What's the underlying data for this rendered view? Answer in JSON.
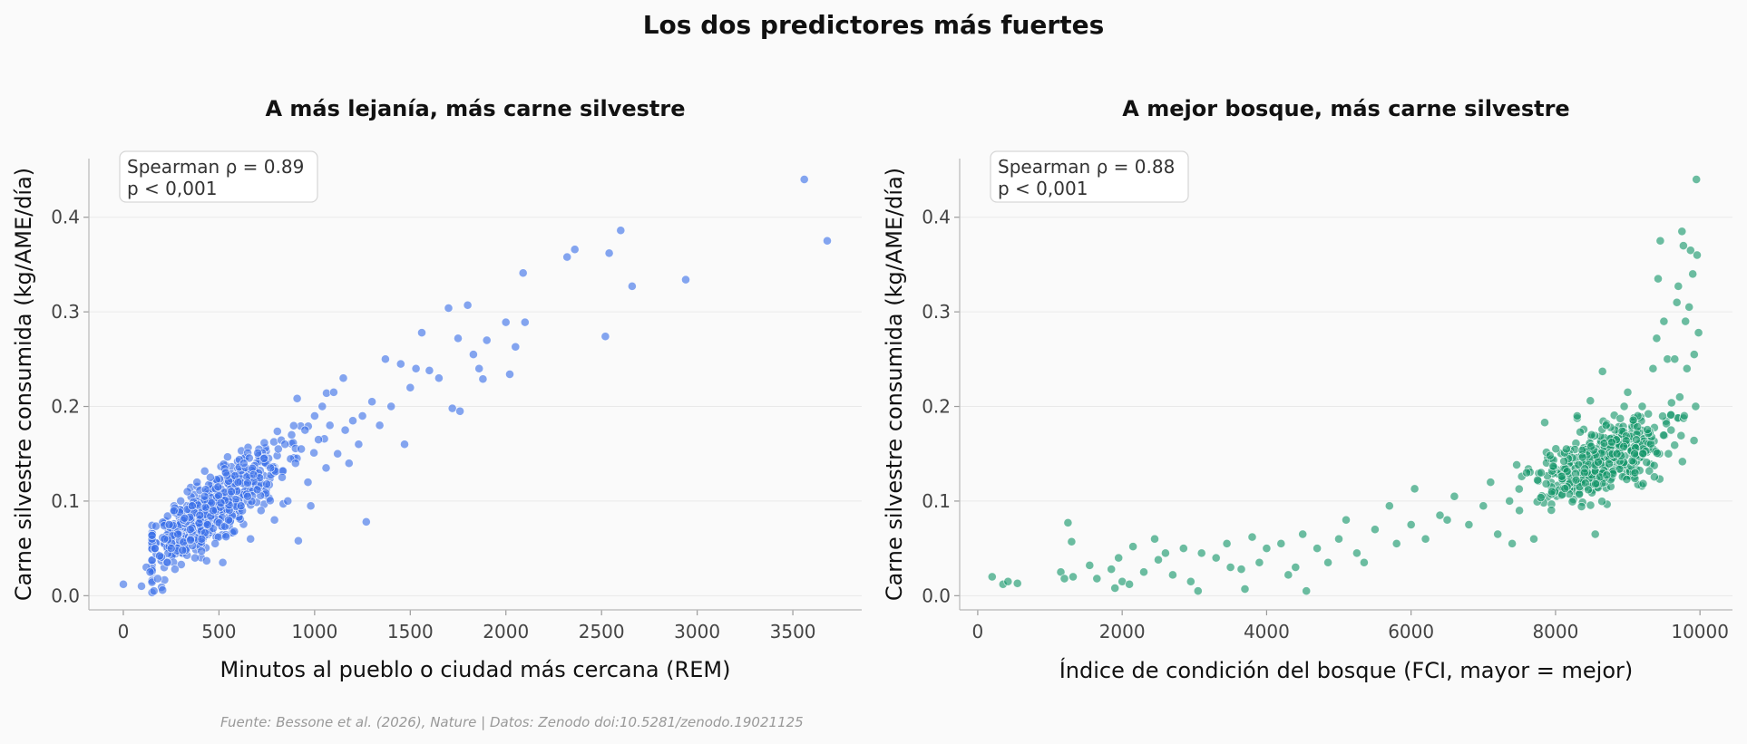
{
  "figure": {
    "title": "Los dos predictores más fuertes",
    "source": "Fuente: Bessone et al. (2026), Nature | Datos: Zenodo doi:10.5281/zenodo.19021125"
  },
  "chart_data": [
    {
      "type": "scatter",
      "title": "A más lejanía, más carne silvestre",
      "xlabel": "Minutos al pueblo o ciudad más cercana (REM)",
      "ylabel": "Carne silvestre consumida (kg/AME/día)",
      "xlim": [
        -180,
        3860
      ],
      "ylim": [
        -0.015,
        0.462
      ],
      "xticks": [
        0,
        500,
        1000,
        1500,
        2000,
        2500,
        3000,
        3500
      ],
      "yticks": [
        0.0,
        0.1,
        0.2,
        0.3,
        0.4
      ],
      "xtick_labels": [
        "0",
        "500",
        "1000",
        "1500",
        "2000",
        "2500",
        "3000",
        "3500"
      ],
      "ytick_labels": [
        "0.0",
        "0.1",
        "0.2",
        "0.3",
        "0.4"
      ],
      "grid": "horizontal",
      "color": "#3a6fe8",
      "stat_lines": [
        "Spearman ρ = 0.89",
        "p < 0,001"
      ],
      "points": [
        [
          0,
          0.012
        ],
        [
          95,
          0.01
        ],
        [
          120,
          0.03
        ],
        [
          140,
          0.025
        ],
        [
          160,
          0.005
        ],
        [
          165,
          0.05
        ],
        [
          180,
          0.018
        ],
        [
          190,
          0.042
        ],
        [
          205,
          0.006
        ],
        [
          215,
          0.06
        ],
        [
          230,
          0.035
        ],
        [
          240,
          0.075
        ],
        [
          250,
          0.05
        ],
        [
          265,
          0.09
        ],
        [
          270,
          0.028
        ],
        [
          285,
          0.065
        ],
        [
          300,
          0.1
        ],
        [
          310,
          0.048
        ],
        [
          320,
          0.082
        ],
        [
          335,
          0.11
        ],
        [
          350,
          0.07
        ],
        [
          360,
          0.095
        ],
        [
          375,
          0.04
        ],
        [
          385,
          0.12
        ],
        [
          400,
          0.085
        ],
        [
          410,
          0.06
        ],
        [
          425,
          0.105
        ],
        [
          440,
          0.075
        ],
        [
          455,
          0.125
        ],
        [
          470,
          0.09
        ],
        [
          480,
          0.055
        ],
        [
          495,
          0.115
        ],
        [
          510,
          0.098
        ],
        [
          520,
          0.035
        ],
        [
          535,
          0.13
        ],
        [
          550,
          0.08
        ],
        [
          565,
          0.11
        ],
        [
          580,
          0.068
        ],
        [
          600,
          0.12
        ],
        [
          615,
          0.095
        ],
        [
          630,
          0.14
        ],
        [
          650,
          0.105
        ],
        [
          665,
          0.06
        ],
        [
          680,
          0.128
        ],
        [
          700,
          0.112
        ],
        [
          720,
          0.09
        ],
        [
          735,
          0.145
        ],
        [
          750,
          0.118
        ],
        [
          770,
          0.135
        ],
        [
          790,
          0.08
        ],
        [
          810,
          0.155
        ],
        [
          830,
          0.125
        ],
        [
          845,
          0.16
        ],
        [
          860,
          0.1
        ],
        [
          880,
          0.17
        ],
        [
          900,
          0.14
        ],
        [
          915,
          0.058
        ],
        [
          930,
          0.155
        ],
        [
          950,
          0.175
        ],
        [
          965,
          0.12
        ],
        [
          980,
          0.095
        ],
        [
          1000,
          0.19
        ],
        [
          1020,
          0.165
        ],
        [
          1040,
          0.2
        ],
        [
          1060,
          0.135
        ],
        [
          1080,
          0.18
        ],
        [
          1100,
          0.215
        ],
        [
          1120,
          0.15
        ],
        [
          1150,
          0.23
        ],
        [
          1160,
          0.175
        ],
        [
          1180,
          0.14
        ],
        [
          1200,
          0.185
        ],
        [
          1230,
          0.16
        ],
        [
          1250,
          0.19
        ],
        [
          1270,
          0.078
        ],
        [
          1300,
          0.205
        ],
        [
          1340,
          0.18
        ],
        [
          1370,
          0.25
        ],
        [
          1400,
          0.2
        ],
        [
          1450,
          0.245
        ],
        [
          1470,
          0.16
        ],
        [
          1500,
          0.22
        ],
        [
          1530,
          0.24
        ],
        [
          1560,
          0.278
        ],
        [
          1600,
          0.238
        ],
        [
          1650,
          0.23
        ],
        [
          1700,
          0.304
        ],
        [
          1720,
          0.198
        ],
        [
          1750,
          0.272
        ],
        [
          1760,
          0.195
        ],
        [
          1800,
          0.307
        ],
        [
          1830,
          0.255
        ],
        [
          1860,
          0.24
        ],
        [
          1880,
          0.229
        ],
        [
          1900,
          0.27
        ],
        [
          2000,
          0.289
        ],
        [
          2020,
          0.234
        ],
        [
          2050,
          0.263
        ],
        [
          2090,
          0.341
        ],
        [
          2100,
          0.289
        ],
        [
          2320,
          0.358
        ],
        [
          2360,
          0.366
        ],
        [
          2520,
          0.274
        ],
        [
          2540,
          0.362
        ],
        [
          2600,
          0.386
        ],
        [
          2660,
          0.327
        ],
        [
          2940,
          0.334
        ],
        [
          3560,
          0.44
        ],
        [
          3680,
          0.375
        ]
      ],
      "cluster": {
        "count": 560,
        "x_center": 470,
        "x_spread": 330,
        "slope": 0.000155,
        "intercept": 0.018,
        "noise": 0.017,
        "x_min": 150,
        "x_max": 1150
      }
    },
    {
      "type": "scatter",
      "title": "A mejor bosque, más carne silvestre",
      "xlabel": "Índice de condición del bosque (FCI, mayor = mejor)",
      "ylabel": "Carne silvestre consumida (kg/AME/día)",
      "xlim": [
        -250,
        10450
      ],
      "ylim": [
        -0.015,
        0.462
      ],
      "xticks": [
        0,
        2000,
        4000,
        6000,
        8000,
        10000
      ],
      "yticks": [
        0.0,
        0.1,
        0.2,
        0.3,
        0.4
      ],
      "xtick_labels": [
        "0",
        "2000",
        "4000",
        "6000",
        "8000",
        "10000"
      ],
      "ytick_labels": [
        "0.0",
        "0.1",
        "0.2",
        "0.3",
        "0.4"
      ],
      "grid": "horizontal",
      "color": "#139669",
      "stat_lines": [
        "Spearman ρ = 0.88",
        "p < 0,001"
      ],
      "points": [
        [
          200,
          0.02
        ],
        [
          350,
          0.012
        ],
        [
          420,
          0.015
        ],
        [
          550,
          0.013
        ],
        [
          1150,
          0.025
        ],
        [
          1200,
          0.018
        ],
        [
          1250,
          0.077
        ],
        [
          1300,
          0.057
        ],
        [
          1320,
          0.02
        ],
        [
          1550,
          0.032
        ],
        [
          1650,
          0.018
        ],
        [
          1850,
          0.028
        ],
        [
          1900,
          0.008
        ],
        [
          1950,
          0.04
        ],
        [
          2000,
          0.015
        ],
        [
          2100,
          0.012
        ],
        [
          2150,
          0.052
        ],
        [
          2300,
          0.025
        ],
        [
          2450,
          0.06
        ],
        [
          2500,
          0.038
        ],
        [
          2600,
          0.045
        ],
        [
          2700,
          0.022
        ],
        [
          2850,
          0.05
        ],
        [
          2950,
          0.015
        ],
        [
          3050,
          0.005
        ],
        [
          3100,
          0.045
        ],
        [
          3300,
          0.04
        ],
        [
          3450,
          0.055
        ],
        [
          3500,
          0.03
        ],
        [
          3650,
          0.028
        ],
        [
          3700,
          0.007
        ],
        [
          3800,
          0.062
        ],
        [
          3900,
          0.035
        ],
        [
          4000,
          0.05
        ],
        [
          4200,
          0.055
        ],
        [
          4300,
          0.022
        ],
        [
          4400,
          0.03
        ],
        [
          4500,
          0.065
        ],
        [
          4550,
          0.005
        ],
        [
          4700,
          0.05
        ],
        [
          4850,
          0.035
        ],
        [
          5000,
          0.06
        ],
        [
          5100,
          0.08
        ],
        [
          5250,
          0.045
        ],
        [
          5350,
          0.035
        ],
        [
          5500,
          0.07
        ],
        [
          5700,
          0.095
        ],
        [
          5800,
          0.055
        ],
        [
          6000,
          0.075
        ],
        [
          6050,
          0.113
        ],
        [
          6200,
          0.06
        ],
        [
          6400,
          0.085
        ],
        [
          6500,
          0.08
        ],
        [
          6600,
          0.105
        ],
        [
          6800,
          0.075
        ],
        [
          7000,
          0.095
        ],
        [
          7100,
          0.12
        ],
        [
          7200,
          0.065
        ],
        [
          7400,
          0.055
        ],
        [
          7500,
          0.09
        ],
        [
          7600,
          0.13
        ],
        [
          7700,
          0.06
        ],
        [
          7800,
          0.13
        ],
        [
          7850,
          0.183
        ],
        [
          7950,
          0.11
        ],
        [
          8150,
          0.155
        ],
        [
          8300,
          0.19
        ],
        [
          8400,
          0.13
        ],
        [
          8500,
          0.17
        ],
        [
          8550,
          0.065
        ],
        [
          8650,
          0.237
        ],
        [
          8700,
          0.18
        ],
        [
          8850,
          0.15
        ],
        [
          8950,
          0.2
        ],
        [
          9000,
          0.215
        ],
        [
          9100,
          0.13
        ],
        [
          9200,
          0.2
        ],
        [
          9350,
          0.24
        ],
        [
          9400,
          0.272
        ],
        [
          9420,
          0.335
        ],
        [
          9450,
          0.375
        ],
        [
          9500,
          0.29
        ],
        [
          9550,
          0.25
        ],
        [
          9600,
          0.175
        ],
        [
          9650,
          0.25
        ],
        [
          9680,
          0.31
        ],
        [
          9700,
          0.327
        ],
        [
          9720,
          0.21
        ],
        [
          9750,
          0.385
        ],
        [
          9770,
          0.37
        ],
        [
          9800,
          0.29
        ],
        [
          9820,
          0.24
        ],
        [
          9850,
          0.305
        ],
        [
          9870,
          0.365
        ],
        [
          9900,
          0.34
        ],
        [
          9920,
          0.255
        ],
        [
          9940,
          0.2
        ],
        [
          9960,
          0.36
        ],
        [
          9980,
          0.278
        ],
        [
          9950,
          0.44
        ]
      ],
      "cluster": {
        "count": 430,
        "x_center": 8700,
        "x_spread": 900,
        "a": 0.03,
        "b": 0.00018,
        "noise": 0.018,
        "x_min": 6500,
        "x_max": 9950
      }
    }
  ]
}
